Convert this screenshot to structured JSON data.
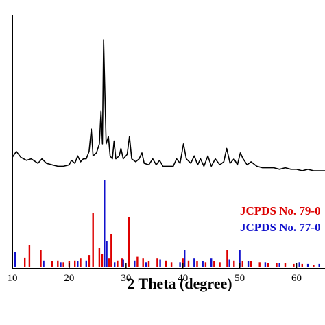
{
  "chart_data": {
    "type": "line",
    "xlabel": "2 Theta (degree)",
    "ylabel": "",
    "xlim": [
      10,
      65
    ],
    "x_ticks": [
      10,
      20,
      30,
      40,
      50,
      60
    ],
    "y_ticks_shown": false,
    "grid": false,
    "colors": {
      "pattern": "#000000",
      "ref_red": "#dd0000",
      "ref_blue": "#1010cc"
    },
    "legend": [
      {
        "label": "JCPDS No. 79-0",
        "color": "#dd0000"
      },
      {
        "label": "JCPDS No. 77-0",
        "color": "#1010cc"
      }
    ],
    "series": [
      {
        "kind": "pattern",
        "points": [
          [
            10,
            0.21
          ],
          [
            10.7,
            0.25
          ],
          [
            11.5,
            0.21
          ],
          [
            12.5,
            0.19
          ],
          [
            13.3,
            0.2
          ],
          [
            14.5,
            0.17
          ],
          [
            15.2,
            0.2
          ],
          [
            16,
            0.17
          ],
          [
            17,
            0.16
          ],
          [
            18,
            0.15
          ],
          [
            19,
            0.15
          ],
          [
            20,
            0.16
          ],
          [
            20.4,
            0.19
          ],
          [
            21,
            0.17
          ],
          [
            21.5,
            0.22
          ],
          [
            22,
            0.18
          ],
          [
            22.5,
            0.2
          ],
          [
            23,
            0.2
          ],
          [
            23.5,
            0.25
          ],
          [
            23.9,
            0.4
          ],
          [
            24.2,
            0.22
          ],
          [
            24.8,
            0.24
          ],
          [
            25.3,
            0.3
          ],
          [
            25.6,
            0.52
          ],
          [
            25.85,
            0.3
          ],
          [
            26.05,
            1.0
          ],
          [
            26.25,
            0.7
          ],
          [
            26.5,
            0.3
          ],
          [
            26.9,
            0.35
          ],
          [
            27.2,
            0.22
          ],
          [
            27.6,
            0.2
          ],
          [
            27.9,
            0.32
          ],
          [
            28.2,
            0.2
          ],
          [
            28.8,
            0.22
          ],
          [
            29.1,
            0.27
          ],
          [
            29.5,
            0.2
          ],
          [
            30.2,
            0.23
          ],
          [
            30.6,
            0.35
          ],
          [
            31,
            0.2
          ],
          [
            31.7,
            0.18
          ],
          [
            32.3,
            0.2
          ],
          [
            32.8,
            0.24
          ],
          [
            33.2,
            0.17
          ],
          [
            34,
            0.16
          ],
          [
            34.7,
            0.2
          ],
          [
            35.3,
            0.16
          ],
          [
            35.9,
            0.19
          ],
          [
            36.5,
            0.15
          ],
          [
            37.5,
            0.15
          ],
          [
            38.3,
            0.15
          ],
          [
            38.9,
            0.2
          ],
          [
            39.5,
            0.17
          ],
          [
            40.1,
            0.3
          ],
          [
            40.6,
            0.2
          ],
          [
            41.4,
            0.17
          ],
          [
            42,
            0.22
          ],
          [
            42.6,
            0.16
          ],
          [
            43.1,
            0.2
          ],
          [
            43.7,
            0.15
          ],
          [
            44.4,
            0.22
          ],
          [
            45,
            0.15
          ],
          [
            45.7,
            0.2
          ],
          [
            46.5,
            0.16
          ],
          [
            47.2,
            0.18
          ],
          [
            47.7,
            0.27
          ],
          [
            48.3,
            0.17
          ],
          [
            49,
            0.2
          ],
          [
            49.6,
            0.16
          ],
          [
            50.1,
            0.24
          ],
          [
            50.6,
            0.2
          ],
          [
            51.3,
            0.16
          ],
          [
            52,
            0.18
          ],
          [
            53,
            0.15
          ],
          [
            54,
            0.14
          ],
          [
            55,
            0.14
          ],
          [
            56,
            0.14
          ],
          [
            57,
            0.13
          ],
          [
            58,
            0.14
          ],
          [
            59,
            0.13
          ],
          [
            60,
            0.13
          ],
          [
            61,
            0.12
          ],
          [
            62,
            0.13
          ],
          [
            63,
            0.12
          ],
          [
            64,
            0.12
          ],
          [
            65,
            0.12
          ]
        ]
      },
      {
        "kind": "reference_bars",
        "color": "#dd0000",
        "peaks": [
          [
            12.2,
            0.11
          ],
          [
            13.0,
            0.25
          ],
          [
            15.0,
            0.2
          ],
          [
            17.0,
            0.07
          ],
          [
            18.0,
            0.08
          ],
          [
            19.0,
            0.06
          ],
          [
            20.0,
            0.07
          ],
          [
            21.0,
            0.08
          ],
          [
            22.0,
            0.1
          ],
          [
            23.5,
            0.14
          ],
          [
            24.2,
            0.62
          ],
          [
            25.3,
            0.22
          ],
          [
            25.8,
            0.15
          ],
          [
            27.0,
            0.1
          ],
          [
            27.4,
            0.38
          ],
          [
            28.5,
            0.08
          ],
          [
            29.3,
            0.1
          ],
          [
            30.5,
            0.57
          ],
          [
            32.0,
            0.12
          ],
          [
            33.0,
            0.1
          ],
          [
            34.0,
            0.07
          ],
          [
            35.5,
            0.1
          ],
          [
            37.0,
            0.08
          ],
          [
            38.0,
            0.06
          ],
          [
            40.0,
            0.1
          ],
          [
            41.0,
            0.08
          ],
          [
            42.5,
            0.07
          ],
          [
            44.0,
            0.06
          ],
          [
            45.5,
            0.07
          ],
          [
            46.5,
            0.06
          ],
          [
            47.8,
            0.2
          ],
          [
            49.0,
            0.08
          ],
          [
            50.5,
            0.07
          ],
          [
            52.0,
            0.07
          ],
          [
            53.5,
            0.06
          ],
          [
            55.0,
            0.05
          ],
          [
            56.5,
            0.05
          ],
          [
            58.0,
            0.05
          ],
          [
            59.5,
            0.04
          ],
          [
            61.0,
            0.04
          ],
          [
            63.0,
            0.03
          ]
        ]
      },
      {
        "kind": "reference_bars",
        "color": "#1010cc",
        "peaks": [
          [
            10.5,
            0.18
          ],
          [
            15.5,
            0.08
          ],
          [
            18.5,
            0.06
          ],
          [
            21.5,
            0.07
          ],
          [
            23.0,
            0.08
          ],
          [
            26.2,
            1.0
          ],
          [
            26.6,
            0.3
          ],
          [
            28.0,
            0.06
          ],
          [
            29.5,
            0.09
          ],
          [
            31.5,
            0.08
          ],
          [
            33.5,
            0.06
          ],
          [
            36.0,
            0.09
          ],
          [
            39.5,
            0.06
          ],
          [
            40.3,
            0.2
          ],
          [
            42.0,
            0.1
          ],
          [
            43.5,
            0.07
          ],
          [
            45.0,
            0.1
          ],
          [
            48.2,
            0.09
          ],
          [
            50.0,
            0.2
          ],
          [
            51.5,
            0.07
          ],
          [
            54.5,
            0.06
          ],
          [
            57.0,
            0.05
          ],
          [
            60.5,
            0.06
          ],
          [
            62.0,
            0.04
          ],
          [
            64.0,
            0.04
          ]
        ]
      }
    ]
  }
}
